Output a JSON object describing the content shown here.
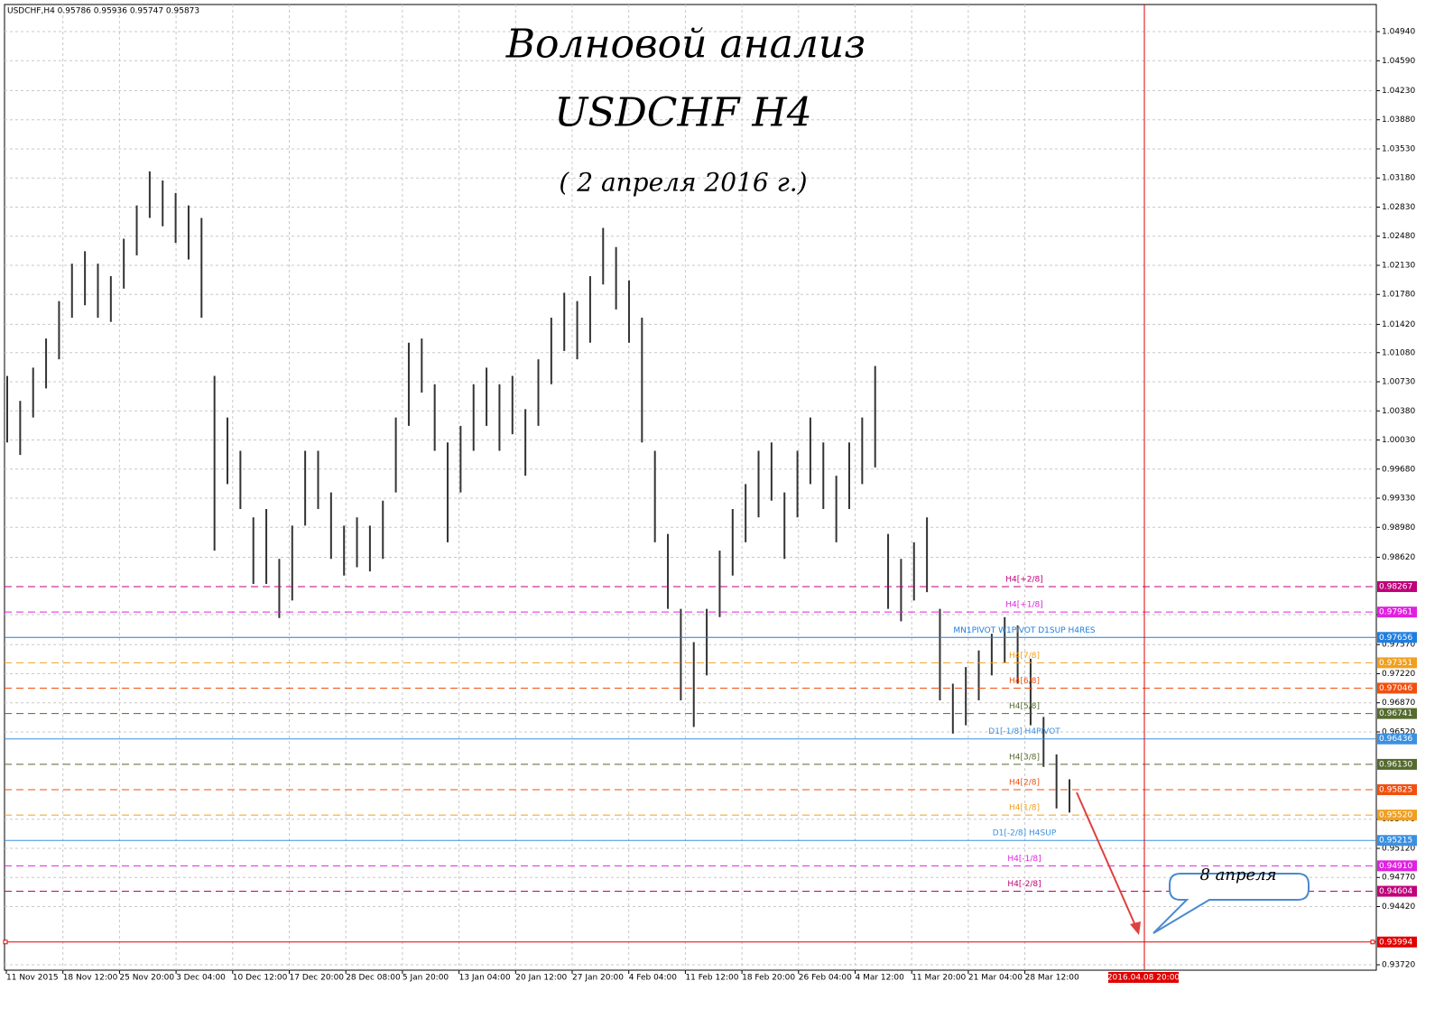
{
  "chart_data": {
    "type": "ohlc",
    "header": "USDCHF,H4  0.95786 0.95936 0.95747 0.95873",
    "title": "Волновой анализ",
    "subtitle": "USDCHF H4",
    "date_note": "( 2 апреля 2016 г.)",
    "callout": "8 апреля",
    "forecast_time": "2016.04.08 20:00",
    "color": "#333333",
    "grid": true,
    "ylim": [
      0.93655,
      1.05266
    ],
    "yticks": [
      {
        "value": 1.0494,
        "label": "1.04940"
      },
      {
        "value": 1.0459,
        "label": "1.04590"
      },
      {
        "value": 1.0423,
        "label": "1.04230"
      },
      {
        "value": 1.0388,
        "label": "1.03880"
      },
      {
        "value": 1.0353,
        "label": "1.03530"
      },
      {
        "value": 1.0318,
        "label": "1.03180"
      },
      {
        "value": 1.0283,
        "label": "1.02830"
      },
      {
        "value": 1.0248,
        "label": "1.02480"
      },
      {
        "value": 1.0213,
        "label": "1.02130"
      },
      {
        "value": 1.0178,
        "label": "1.01780"
      },
      {
        "value": 1.0142,
        "label": "1.01420"
      },
      {
        "value": 1.0108,
        "label": "1.01080"
      },
      {
        "value": 1.0073,
        "label": "1.00730"
      },
      {
        "value": 1.0038,
        "label": "1.00380"
      },
      {
        "value": 1.0003,
        "label": "1.00030"
      },
      {
        "value": 0.9968,
        "label": "0.99680"
      },
      {
        "value": 0.9933,
        "label": "0.99330"
      },
      {
        "value": 0.9898,
        "label": "0.98980"
      },
      {
        "value": 0.9862,
        "label": "0.98620"
      },
      {
        "value": 0.9793,
        "label": "0.97930"
      },
      {
        "value": 0.9757,
        "label": "0.97570"
      },
      {
        "value": 0.9722,
        "label": "0.97220"
      },
      {
        "value": 0.9687,
        "label": "0.96870"
      },
      {
        "value": 0.9652,
        "label": "0.96520"
      },
      {
        "value": 0.9547,
        "label": "0.95470"
      },
      {
        "value": 0.9512,
        "label": "0.95120"
      },
      {
        "value": 0.9477,
        "label": "0.94770"
      },
      {
        "value": 0.9442,
        "label": "0.94420"
      },
      {
        "value": 0.9372,
        "label": "0.93720"
      }
    ],
    "x_labels": [
      "11 Nov 2015",
      "18 Nov 12:00",
      "25 Nov 20:00",
      "3 Dec 04:00",
      "10 Dec 12:00",
      "17 Dec 20:00",
      "28 Dec 08:00",
      "5 Jan 20:00",
      "13 Jan 04:00",
      "20 Jan 12:00",
      "27 Jan 20:00",
      "4 Feb 04:00",
      "11 Feb 12:00",
      "18 Feb 20:00",
      "26 Feb 04:00",
      "4 Mar 12:00",
      "11 Mar 20:00",
      "21 Mar 04:00",
      "28 Mar 12:00"
    ],
    "high": [
      1.008,
      1.005,
      1.009,
      1.0125,
      1.017,
      1.0215,
      1.023,
      1.0215,
      1.02,
      1.0245,
      1.0285,
      1.0326,
      1.0315,
      1.03,
      1.0285,
      1.027,
      1.008,
      1.003,
      0.999,
      0.991,
      0.992,
      0.986,
      0.99,
      0.999,
      0.999,
      0.994,
      0.99,
      0.991,
      0.99,
      0.993,
      1.003,
      1.012,
      1.0125,
      1.007,
      1.0,
      1.002,
      1.007,
      1.009,
      1.007,
      1.008,
      1.004,
      1.01,
      1.015,
      1.018,
      1.017,
      1.02,
      1.0258,
      1.0235,
      1.0195,
      1.015,
      0.999,
      0.989,
      0.98,
      0.976,
      0.98,
      0.987,
      0.992,
      0.995,
      0.999,
      1.0,
      0.994,
      0.999,
      1.003,
      1.0,
      0.996,
      1.0,
      1.003,
      1.0092,
      0.989,
      0.986,
      0.988,
      0.991,
      0.98,
      0.971,
      0.973,
      0.975,
      0.977,
      0.979,
      0.978,
      0.974,
      0.967,
      0.9625,
      0.9595
    ],
    "low": [
      1.0,
      0.9985,
      1.003,
      1.0065,
      1.01,
      1.015,
      1.0165,
      1.015,
      1.0145,
      1.0185,
      1.0225,
      1.027,
      1.026,
      1.024,
      1.022,
      1.015,
      0.987,
      0.995,
      0.992,
      0.983,
      0.983,
      0.9789,
      0.981,
      0.99,
      0.992,
      0.986,
      0.984,
      0.985,
      0.9845,
      0.986,
      0.994,
      1.002,
      1.006,
      0.999,
      0.988,
      0.994,
      0.999,
      1.002,
      0.999,
      1.001,
      0.996,
      1.002,
      1.007,
      1.011,
      1.01,
      1.012,
      1.019,
      1.016,
      1.012,
      1.0,
      0.988,
      0.98,
      0.969,
      0.9658,
      0.972,
      0.979,
      0.984,
      0.988,
      0.991,
      0.993,
      0.986,
      0.991,
      0.995,
      0.992,
      0.988,
      0.992,
      0.995,
      0.997,
      0.98,
      0.9785,
      0.981,
      0.982,
      0.969,
      0.965,
      0.966,
      0.969,
      0.972,
      0.9735,
      0.971,
      0.966,
      0.961,
      0.956,
      0.9555
    ],
    "levels": [
      {
        "price": {
          "value": 0.98267,
          "label": "0.98267"
        },
        "name": "H4[+2/8]",
        "color": "#c0007a",
        "dashed": true
      },
      {
        "price": {
          "value": 0.97961,
          "label": "0.97961"
        },
        "name": "H4[+1/8]",
        "color": "#e020e0",
        "dashed": true
      },
      {
        "price": {
          "value": 0.97656,
          "label": "0.97656"
        },
        "name": "MN1PIVOT W1PIVOT D1SUP H4RES",
        "color": "#1e7fe0",
        "dashed": false
      },
      {
        "price": {
          "value": 0.97351,
          "label": "0.97351"
        },
        "name": "H4[7/8]",
        "color": "#f0a020",
        "dashed": true
      },
      {
        "price": {
          "value": 0.97046,
          "label": "0.97046"
        },
        "name": "H4[6/8]",
        "color": "#f05010",
        "dashed": true
      },
      {
        "price": {
          "value": 0.96741,
          "label": "0.96741"
        },
        "name": "H4[5/8]",
        "color": "#556b2f",
        "dashed": true
      },
      {
        "price": {
          "value": 0.96436,
          "label": "0.96436"
        },
        "name": "D1[-1/8] H4PIVOT",
        "color": "#3a90e0",
        "dashed": false
      },
      {
        "price": {
          "value": 0.9613,
          "label": "0.96130"
        },
        "name": "H4[3/8]",
        "color": "#556b2f",
        "dashed": true
      },
      {
        "price": {
          "value": 0.95825,
          "label": "0.95825"
        },
        "name": "H4[2/8]",
        "color": "#f05010",
        "dashed": true
      },
      {
        "price": {
          "value": 0.9552,
          "label": "0.95520"
        },
        "name": "H4[1/8]",
        "color": "#f0a020",
        "dashed": true
      },
      {
        "price": {
          "value": 0.95215,
          "label": "0.95215"
        },
        "name": "D1[-2/8] H4SUP",
        "color": "#3a90e0",
        "dashed": false
      },
      {
        "price": {
          "value": 0.9491,
          "label": "0.94910"
        },
        "name": "H4[-1/8]",
        "color": "#e020e0",
        "dashed": true
      },
      {
        "price": {
          "value": 0.94604,
          "label": "0.94604"
        },
        "name": "H4[-2/8]",
        "color": "#c0007a",
        "dashed": true
      }
    ],
    "target": {
      "price": {
        "value": 0.93994,
        "label": "0.93994"
      },
      "color": "#e00000"
    }
  }
}
